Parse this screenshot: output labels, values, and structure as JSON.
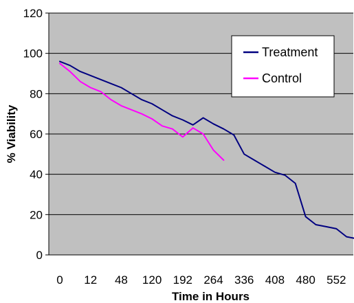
{
  "chart_data": {
    "type": "line",
    "title": "",
    "xlabel": "Time in Hours",
    "ylabel": "% Viability",
    "ylim": [
      0,
      120
    ],
    "yticks": [
      0,
      20,
      40,
      60,
      80,
      100,
      120
    ],
    "xticks": [
      "0",
      "12",
      "48",
      "120",
      "192",
      "264",
      "336",
      "408",
      "480",
      "552"
    ],
    "grid": true,
    "legend_position": "top-right",
    "background_color": "#c0c0c0",
    "series": [
      {
        "name": "Treatment",
        "color": "#000080",
        "values": [
          96,
          94,
          91,
          89,
          87,
          85,
          83,
          80,
          77,
          75,
          72,
          69,
          67,
          64.5,
          68,
          65,
          62.5,
          59.5,
          50,
          47,
          44,
          41,
          39.5,
          35.5,
          19,
          15,
          14,
          13,
          9,
          8
        ]
      },
      {
        "name": "Control",
        "color": "#ff00ff",
        "values": [
          95,
          91,
          86,
          83,
          81,
          77,
          74,
          72,
          70,
          67.5,
          64,
          62.5,
          58.5,
          63,
          60,
          52,
          47
        ]
      }
    ]
  }
}
